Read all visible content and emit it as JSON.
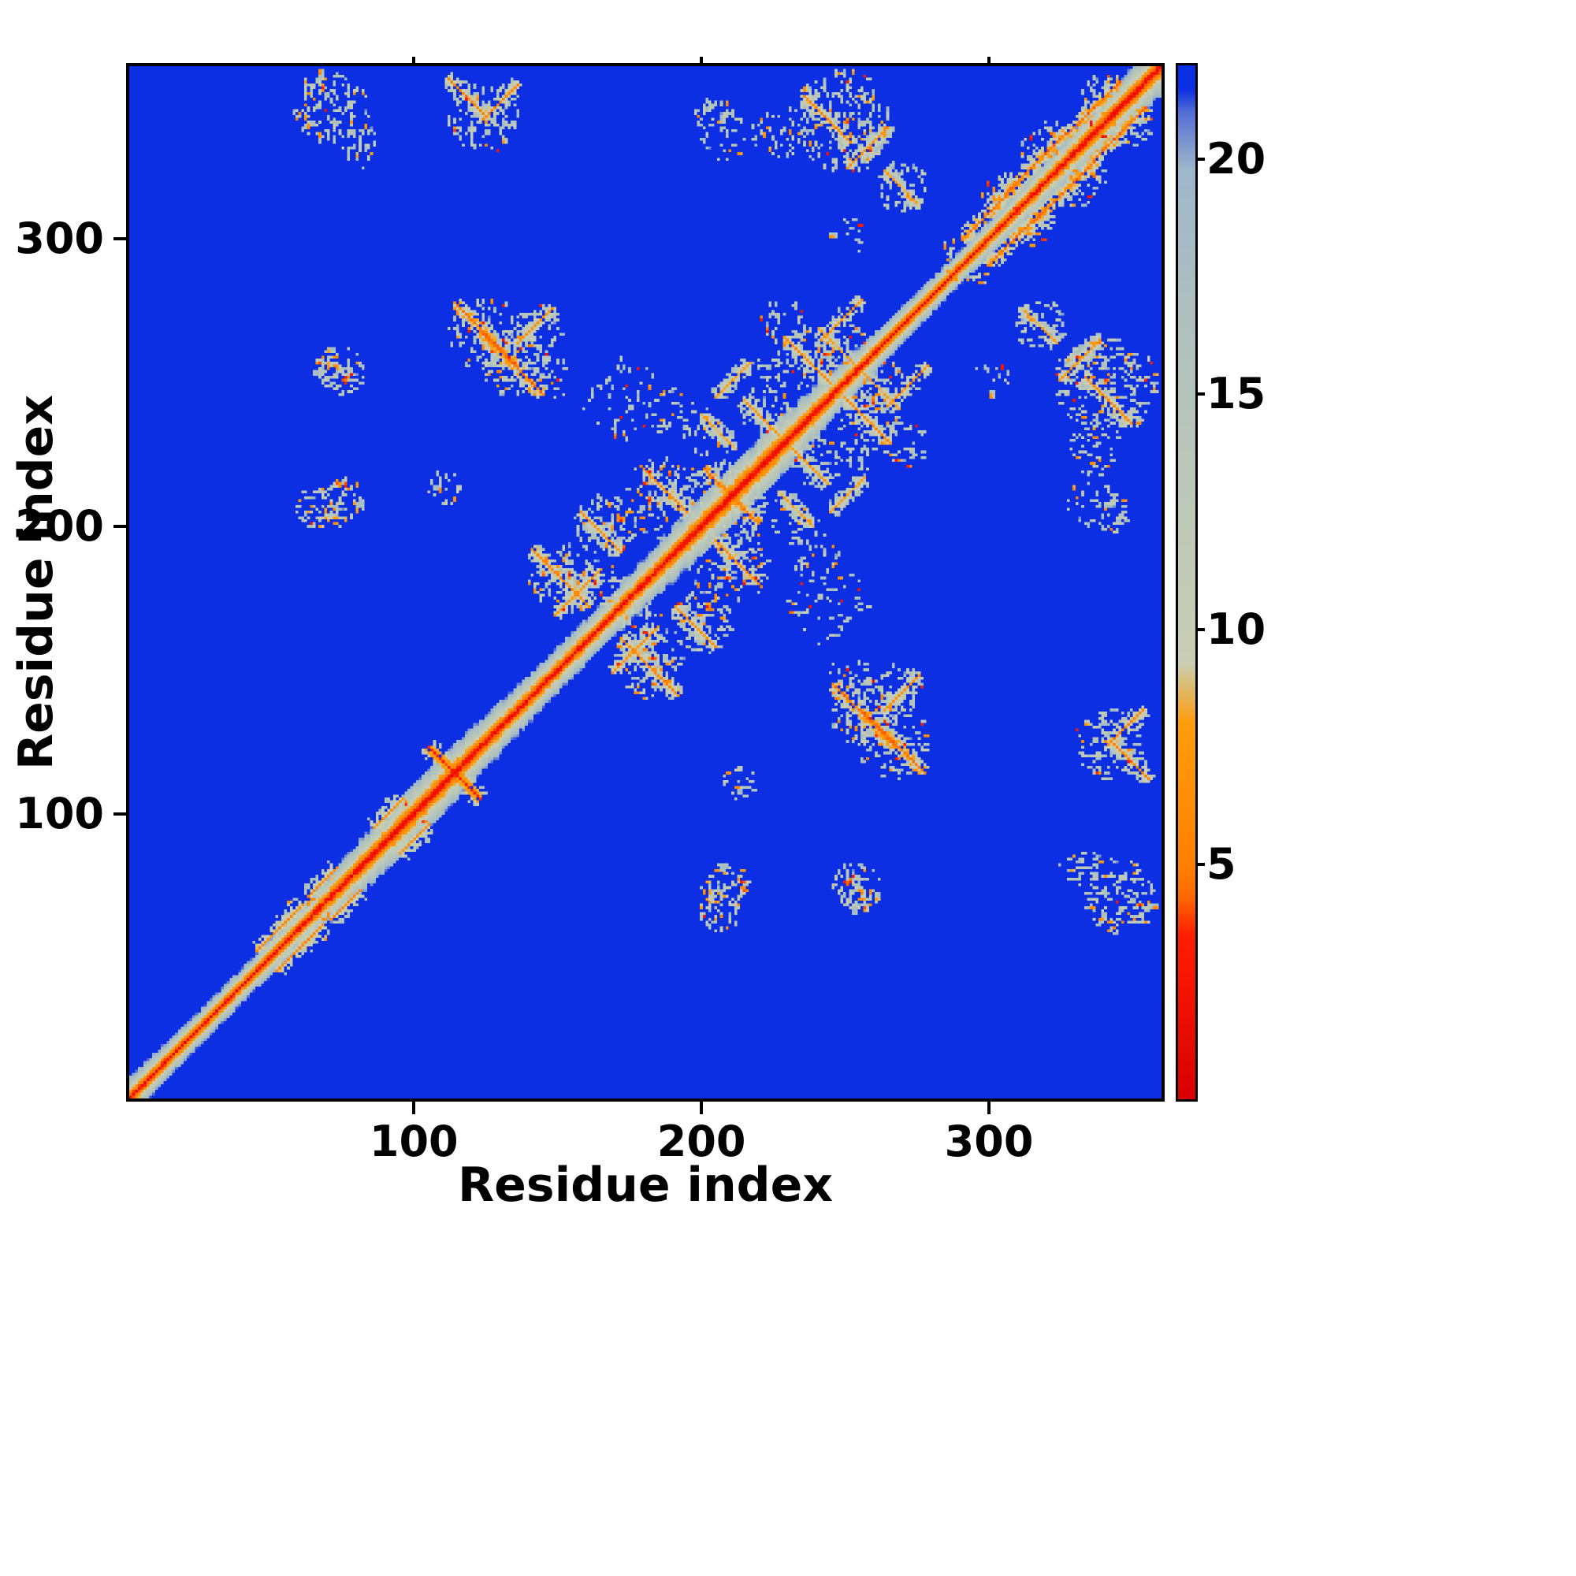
{
  "chart_data": {
    "type": "heatmap",
    "title": "",
    "xlabel": "Residue index",
    "ylabel": "Residue index",
    "x_ticks": [
      100,
      200,
      300
    ],
    "y_ticks": [
      100,
      200,
      300
    ],
    "axis_range": [
      1,
      360
    ],
    "n_residues": 360,
    "content_summary": "Symmetric protein residue-residue distance map: red low-distance diagonal with orange/gray flanks on a uniform blue (capped-distance) field, with mottled off-diagonal contact clusters",
    "background_value": 22,
    "colorbar": {
      "range": [
        0,
        22
      ],
      "ticks": [
        5,
        10,
        15,
        20
      ],
      "stops": [
        {
          "v": 0.0,
          "color": "#d80000"
        },
        {
          "v": 3.5,
          "color": "#ff1e00"
        },
        {
          "v": 4.3,
          "color": "#ff6a00"
        },
        {
          "v": 5.0,
          "color": "#ff8000"
        },
        {
          "v": 8.0,
          "color": "#ff9d0c"
        },
        {
          "v": 9.3,
          "color": "#c9cfb4"
        },
        {
          "v": 12.0,
          "color": "#bfc9b6"
        },
        {
          "v": 17.0,
          "color": "#adc0bf"
        },
        {
          "v": 19.8,
          "color": "#9db7cb"
        },
        {
          "v": 21.0,
          "color": "#5570d5"
        },
        {
          "v": 21.5,
          "color": "#0d2fe3"
        },
        {
          "v": 22.0,
          "color": "#0d2fe3"
        }
      ]
    },
    "diagonal": {
      "core_value": 0.8,
      "slope": 2.35,
      "halfwidth": 10
    },
    "seed": 42,
    "features": {
      "streaks": [
        {
          "x": 113,
          "y": 113,
          "dir": "anti",
          "len": 13,
          "core": 3
        },
        {
          "x": 124,
          "y": 266,
          "dir": "anti",
          "len": 15,
          "core": 4
        },
        {
          "x": 117,
          "y": 349,
          "dir": "anti",
          "len": 9,
          "core": 5
        },
        {
          "x": 129,
          "y": 347,
          "dir": "para",
          "len": 9,
          "core": 5
        },
        {
          "x": 243,
          "y": 341,
          "dir": "anti",
          "len": 12,
          "core": 5
        },
        {
          "x": 257,
          "y": 331,
          "dir": "para",
          "len": 10,
          "core": 6
        },
        {
          "x": 269,
          "y": 317,
          "dir": "anti",
          "len": 9,
          "core": 7
        },
        {
          "x": 150,
          "y": 181,
          "dir": "anti",
          "len": 14,
          "core": 5
        },
        {
          "x": 164,
          "y": 197,
          "dir": "anti",
          "len": 10,
          "core": 6
        },
        {
          "x": 186,
          "y": 212,
          "dir": "anti",
          "len": 12,
          "core": 5
        },
        {
          "x": 206,
          "y": 213,
          "dir": "anti",
          "len": 9,
          "core": 4
        },
        {
          "x": 156,
          "y": 176,
          "dir": "para",
          "len": 11,
          "core": 6
        },
        {
          "x": 220,
          "y": 237,
          "dir": "anti",
          "len": 9,
          "core": 6
        },
        {
          "x": 236,
          "y": 257,
          "dir": "anti",
          "len": 11,
          "core": 5
        },
        {
          "x": 248,
          "y": 271,
          "dir": "para",
          "len": 10,
          "core": 6
        },
        {
          "x": 256,
          "y": 133,
          "dir": "anti",
          "len": 15,
          "core": 4
        },
        {
          "x": 269,
          "y": 141,
          "dir": "para",
          "len": 9,
          "core": 6
        },
        {
          "x": 300,
          "y": 309,
          "dir": "para",
          "len": 14,
          "core": 4
        },
        {
          "x": 316,
          "y": 326,
          "dir": "para",
          "len": 15,
          "core": 4
        },
        {
          "x": 336,
          "y": 345,
          "dir": "para",
          "len": 13,
          "core": 4
        },
        {
          "x": 52,
          "y": 59,
          "dir": "para",
          "len": 11,
          "core": 5
        },
        {
          "x": 67,
          "y": 75,
          "dir": "para",
          "len": 7,
          "core": 5
        },
        {
          "x": 90,
          "y": 99,
          "dir": "para",
          "len": 7,
          "core": 6
        },
        {
          "x": 210,
          "y": 250,
          "dir": "para",
          "len": 8,
          "core": 7
        },
        {
          "x": 232,
          "y": 205,
          "dir": "anti",
          "len": 8,
          "core": 7
        },
        {
          "x": 262,
          "y": 246,
          "dir": "anti",
          "len": 8,
          "core": 7
        }
      ],
      "blobs": [
        {
          "x": 70,
          "y": 345,
          "r": 13,
          "d": 0.35
        },
        {
          "x": 80,
          "y": 331,
          "r": 7,
          "d": 0.3
        },
        {
          "x": 248,
          "y": 340,
          "r": 18,
          "d": 0.3
        },
        {
          "x": 226,
          "y": 336,
          "r": 9,
          "d": 0.25
        },
        {
          "x": 124,
          "y": 266,
          "r": 13,
          "d": 0.3
        },
        {
          "x": 144,
          "y": 251,
          "r": 9,
          "d": 0.25
        },
        {
          "x": 73,
          "y": 207,
          "r": 8,
          "d": 0.35
        },
        {
          "x": 71,
          "y": 254,
          "r": 7,
          "d": 0.3
        },
        {
          "x": 110,
          "y": 212,
          "r": 6,
          "d": 0.3
        },
        {
          "x": 150,
          "y": 181,
          "r": 11,
          "d": 0.3
        },
        {
          "x": 166,
          "y": 199,
          "r": 11,
          "d": 0.3
        },
        {
          "x": 188,
          "y": 212,
          "r": 11,
          "d": 0.3
        },
        {
          "x": 205,
          "y": 66,
          "r": 8,
          "d": 0.35
        },
        {
          "x": 253,
          "y": 73,
          "r": 9,
          "d": 0.35
        },
        {
          "x": 256,
          "y": 134,
          "r": 12,
          "d": 0.3
        },
        {
          "x": 123,
          "y": 341,
          "r": 12,
          "d": 0.3
        },
        {
          "x": 236,
          "y": 257,
          "r": 10,
          "d": 0.3
        },
        {
          "x": 221,
          "y": 238,
          "r": 9,
          "d": 0.25
        },
        {
          "x": 262,
          "y": 249,
          "r": 9,
          "d": 0.25
        },
        {
          "x": 270,
          "y": 317,
          "r": 9,
          "d": 0.25
        },
        {
          "x": 204,
          "y": 341,
          "r": 7,
          "d": 0.3
        },
        {
          "x": 206,
          "y": 214,
          "r": 8,
          "d": 0.3
        },
        {
          "x": 156,
          "y": 176,
          "r": 8,
          "d": 0.25
        },
        {
          "x": 335,
          "y": 206,
          "r": 9,
          "d": 0.15
        },
        {
          "x": 300,
          "y": 250,
          "r": 7,
          "d": 0.15
        },
        {
          "x": 172,
          "y": 242,
          "r": 15,
          "d": 0.1
        },
        {
          "x": 208,
          "y": 186,
          "r": 14,
          "d": 0.1
        },
        {
          "x": 240,
          "y": 188,
          "r": 9,
          "d": 0.15
        },
        {
          "x": 62,
          "y": 60,
          "r": 9,
          "d": 0.3
        },
        {
          "x": 92,
          "y": 97,
          "r": 7,
          "d": 0.3
        },
        {
          "x": 305,
          "y": 312,
          "r": 10,
          "d": 0.25
        },
        {
          "x": 320,
          "y": 330,
          "r": 10,
          "d": 0.25
        },
        {
          "x": 340,
          "y": 347,
          "r": 9,
          "d": 0.25
        },
        {
          "x": 181,
          "y": 146,
          "r": 8,
          "d": 0.2
        },
        {
          "x": 268,
          "y": 142,
          "r": 8,
          "d": 0.25
        },
        {
          "x": 288,
          "y": 292,
          "r": 7,
          "d": 0.2
        },
        {
          "x": 253,
          "y": 222,
          "r": 8,
          "d": 0.2
        },
        {
          "x": 228,
          "y": 270,
          "r": 8,
          "d": 0.2
        },
        {
          "x": 200,
          "y": 232,
          "r": 8,
          "d": 0.2
        },
        {
          "x": 180,
          "y": 165,
          "r": 8,
          "d": 0.2
        }
      ]
    }
  }
}
